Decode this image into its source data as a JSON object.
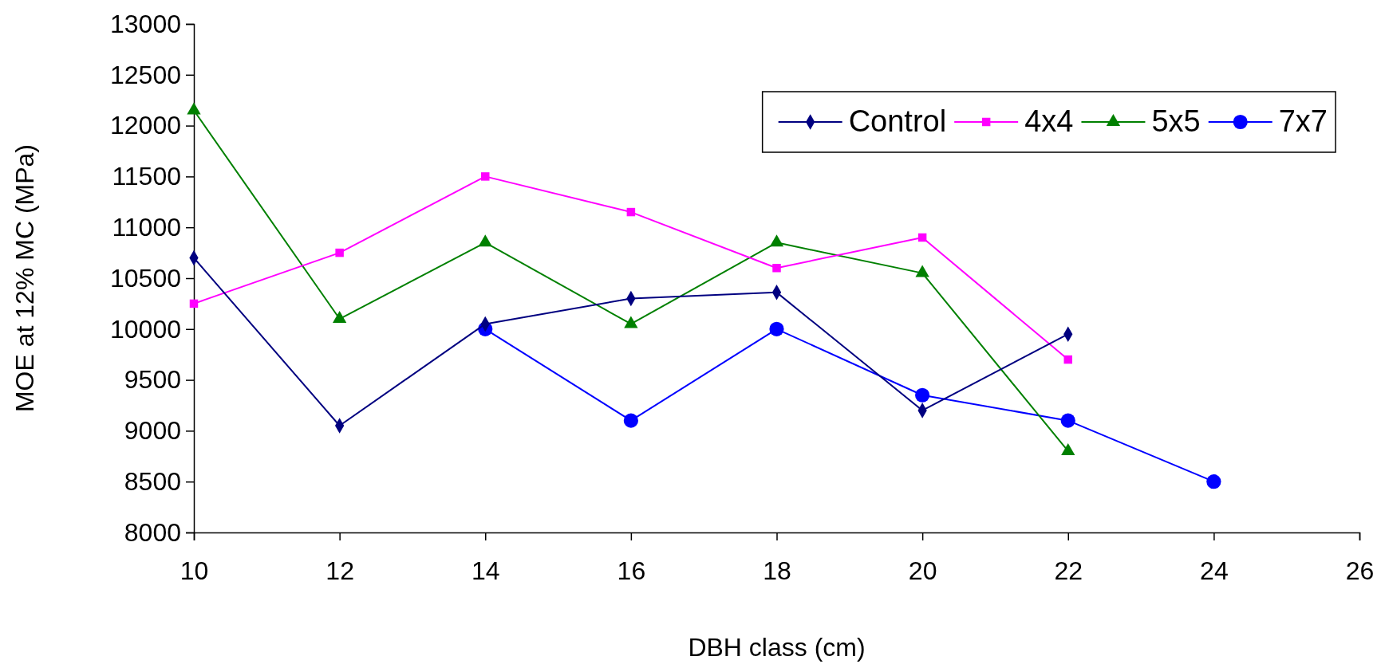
{
  "chart_data": {
    "type": "line",
    "xlabel": "DBH class (cm)",
    "ylabel": "MOE at 12% MC (MPa)",
    "xlim": [
      10,
      26
    ],
    "xticks": [
      10,
      12,
      14,
      16,
      18,
      20,
      22,
      24,
      26
    ],
    "ylim": [
      8000,
      13000
    ],
    "yticks": [
      8000,
      8500,
      9000,
      9500,
      10000,
      10500,
      11000,
      11500,
      12000,
      12500,
      13000
    ],
    "grid": false,
    "legend": "top right",
    "line_style": "solid",
    "series": [
      {
        "name": "Control",
        "color": "#000080",
        "marker": "diamond",
        "x": [
          10,
          12,
          14,
          16,
          18,
          20,
          22
        ],
        "values": [
          10700,
          9050,
          10050,
          10300,
          10360,
          9200,
          9950
        ]
      },
      {
        "name": "4x4",
        "color": "#ff00ff",
        "marker": "square",
        "x": [
          10,
          12,
          14,
          16,
          18,
          20,
          22
        ],
        "values": [
          10250,
          10750,
          11500,
          11150,
          10600,
          10900,
          9700
        ]
      },
      {
        "name": "5x5",
        "color": "#008000",
        "marker": "triangle",
        "x": [
          10,
          12,
          14,
          16,
          18,
          20,
          22
        ],
        "values": [
          12150,
          10100,
          10850,
          10050,
          10850,
          10550,
          8800
        ]
      },
      {
        "name": "7x7",
        "color": "#0000ff",
        "marker": "circle",
        "x": [
          14,
          16,
          18,
          20,
          22,
          24
        ],
        "values": [
          10000,
          9100,
          10000,
          9350,
          9100,
          8500
        ]
      }
    ]
  }
}
